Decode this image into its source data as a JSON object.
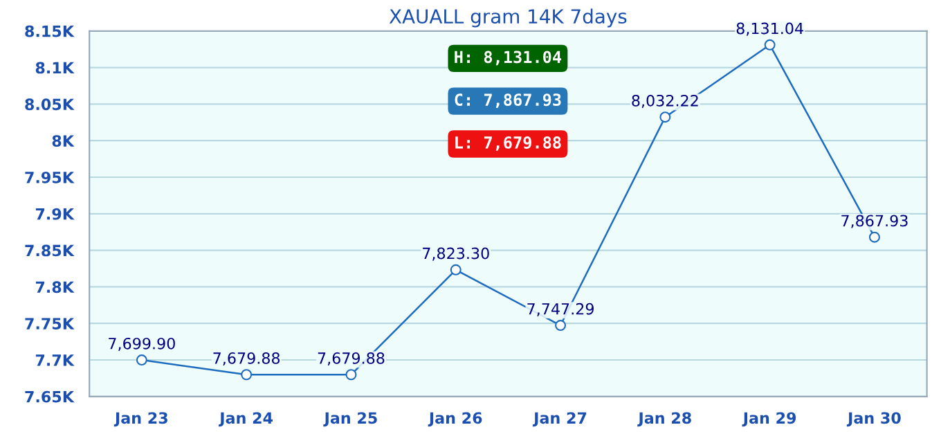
{
  "chart_data": {
    "type": "line",
    "title": "XAUALL gram 14K 7days",
    "categories": [
      "Jan 23",
      "Jan 24",
      "Jan 25",
      "Jan 26",
      "Jan 27",
      "Jan 28",
      "Jan 29",
      "Jan 30"
    ],
    "series": [
      {
        "color": "#1c6cbf",
        "values": [
          7699.9,
          7679.88,
          7679.88,
          7823.3,
          7747.29,
          8032.22,
          8131.04,
          7867.93
        ],
        "value_labels": [
          "7,699.90",
          "7,679.88",
          "7,679.88",
          "7,823.30",
          "7,747.29",
          "8,032.22",
          "8,131.04",
          "7,867.93"
        ]
      }
    ],
    "ylim": [
      7650,
      8150
    ],
    "yticks": [
      {
        "value": 7650,
        "label": "7.65K"
      },
      {
        "value": 7700,
        "label": "7.7K"
      },
      {
        "value": 7750,
        "label": "7.75K"
      },
      {
        "value": 7800,
        "label": "7.8K"
      },
      {
        "value": 7850,
        "label": "7.85K"
      },
      {
        "value": 7900,
        "label": "7.9K"
      },
      {
        "value": 7950,
        "label": "7.95K"
      },
      {
        "value": 8000,
        "label": "8K"
      },
      {
        "value": 8050,
        "label": "8.05K"
      },
      {
        "value": 8100,
        "label": "8.1K"
      },
      {
        "value": 8150,
        "label": "8.15K"
      }
    ],
    "grid": "y",
    "marker": "circle",
    "line_style": "solid",
    "annotations": [
      "H: 8,131.04",
      "C: 7,867.93",
      "L: 7,679.88"
    ]
  }
}
